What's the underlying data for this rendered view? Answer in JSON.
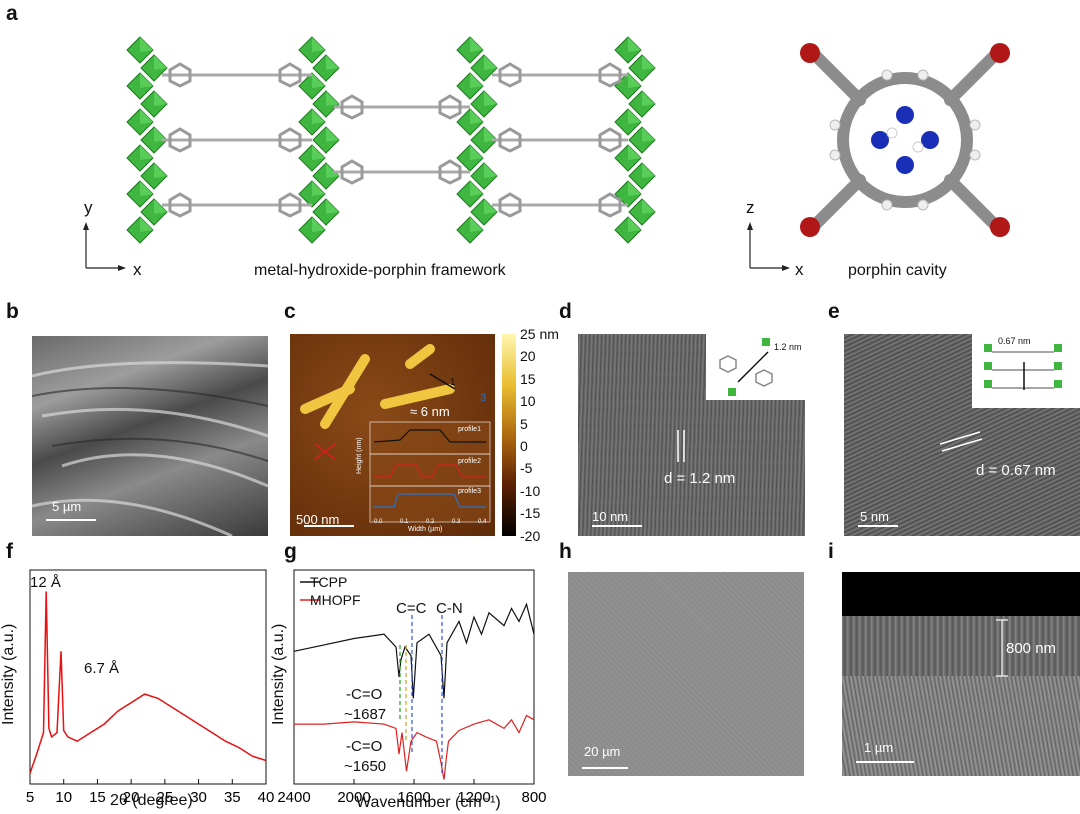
{
  "labels": {
    "a": "a",
    "b": "b",
    "c": "c",
    "d": "d",
    "e": "e",
    "f": "f",
    "g": "g",
    "h": "h",
    "i": "i"
  },
  "panel_a": {
    "framework_caption": "metal-hydroxide-porphin framework",
    "cavity_caption": "porphin cavity",
    "axis_y": "y",
    "axis_x": "x",
    "axis_z": "z",
    "axis_x2": "x"
  },
  "panel_b": {
    "scale": "5 µm"
  },
  "panel_c": {
    "scale": "500 nm",
    "thickness": "≈ 6 nm",
    "marker1": "1",
    "marker3": "3",
    "colorbar_ticks": [
      "25 nm",
      "20",
      "15",
      "10",
      "5",
      "0",
      "-5",
      "-10",
      "-15",
      "-20"
    ],
    "inset_ylabel": "Height (nm)",
    "inset_xlabel": "Width (µm)",
    "inset_xticks": [
      "0.0",
      "0.1",
      "0.2",
      "0.3",
      "0.4"
    ],
    "profiles": [
      "profile1",
      "profile2",
      "profile3"
    ],
    "colors": {
      "profile1": "#111111",
      "profile2": "#d62020",
      "profile3": "#2a72c8"
    }
  },
  "panel_d": {
    "spacing": "d = 1.2 nm",
    "inset_spacing": "1.2 nm",
    "scale": "10 nm"
  },
  "panel_e": {
    "spacing": "d = 0.67 nm",
    "inset_spacing": "0.67 nm",
    "scale": "5 nm"
  },
  "panel_h": {
    "scale": "20 µm"
  },
  "panel_i": {
    "thickness": "800 nm",
    "scale": "1 µm"
  },
  "chart_data": [
    {
      "type": "line",
      "panel": "f",
      "xlabel": "2θ (degree)",
      "ylabel": "Intensity (a.u.)",
      "xlim": [
        5,
        40
      ],
      "xticks": [
        5,
        10,
        15,
        20,
        25,
        30,
        35,
        40
      ],
      "annotations": [
        "12 Å",
        "6.7 Å"
      ],
      "series": [
        {
          "color": "#e81010",
          "x": [
            5,
            6,
            7,
            7.4,
            7.8,
            8.2,
            9,
            9.6,
            10,
            10.6,
            12,
            14,
            16,
            18,
            20,
            22,
            24,
            26,
            28,
            30,
            32,
            34,
            36,
            38,
            40
          ],
          "y": [
            0.05,
            0.14,
            0.24,
            0.9,
            0.26,
            0.22,
            0.24,
            0.62,
            0.25,
            0.22,
            0.2,
            0.24,
            0.28,
            0.34,
            0.38,
            0.42,
            0.4,
            0.36,
            0.32,
            0.28,
            0.24,
            0.2,
            0.17,
            0.13,
            0.11
          ]
        }
      ]
    },
    {
      "type": "line",
      "panel": "g",
      "xlabel": "Wavenumber (cm⁻¹)",
      "ylabel": "Intensity (a.u.)",
      "xlim": [
        2400,
        800
      ],
      "xticks": [
        2400,
        2000,
        1600,
        1200,
        800
      ],
      "annotations": [
        "C=C",
        "C-N",
        "-C=O",
        "~1687",
        "-C=O",
        "~1650"
      ],
      "series": [
        {
          "name": "TCPP",
          "color": "#111111",
          "x": [
            2400,
            2200,
            2000,
            1800,
            1720,
            1700,
            1687,
            1660,
            1620,
            1605,
            1580,
            1500,
            1420,
            1400,
            1380,
            1300,
            1250,
            1200,
            1150,
            1100,
            1000,
            950,
            900,
            850,
            800
          ],
          "y": [
            0.62,
            0.65,
            0.68,
            0.7,
            0.64,
            0.5,
            0.58,
            0.64,
            0.6,
            0.4,
            0.66,
            0.7,
            0.6,
            0.4,
            0.66,
            0.76,
            0.66,
            0.78,
            0.7,
            0.8,
            0.74,
            0.82,
            0.76,
            0.84,
            0.7
          ]
        },
        {
          "name": "MHOPF",
          "color": "#e02020",
          "x": [
            2400,
            2200,
            2000,
            1800,
            1720,
            1700,
            1680,
            1650,
            1620,
            1600,
            1580,
            1520,
            1450,
            1420,
            1400,
            1385,
            1370,
            1300,
            1200,
            1100,
            1000,
            950,
            900,
            850,
            800
          ],
          "y": [
            0.28,
            0.28,
            0.29,
            0.28,
            0.26,
            0.14,
            0.24,
            0.06,
            0.2,
            0.22,
            0.24,
            0.22,
            0.2,
            0.1,
            0.02,
            0.12,
            0.2,
            0.25,
            0.28,
            0.3,
            0.26,
            0.3,
            0.24,
            0.32,
            0.3
          ]
        }
      ]
    }
  ]
}
